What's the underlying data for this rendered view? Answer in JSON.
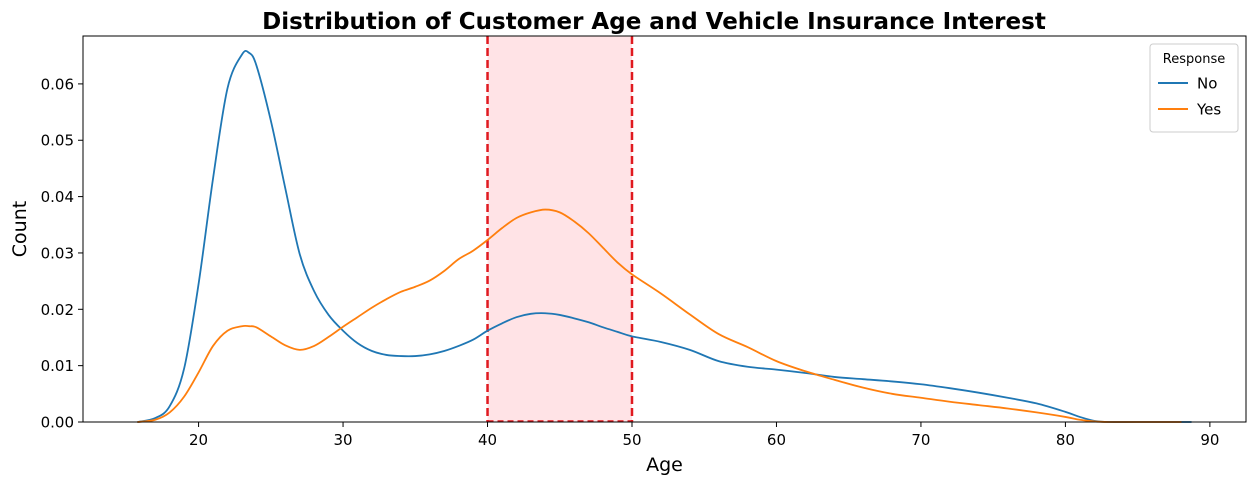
{
  "chart_data": {
    "type": "line",
    "title": "Distribution of Customer Age and Vehicle Insurance Interest",
    "xlabel": "Age",
    "ylabel": "Count",
    "xlim": [
      12,
      92.5
    ],
    "ylim": [
      0,
      0.0685
    ],
    "xticks": [
      20,
      30,
      40,
      50,
      60,
      70,
      80,
      90
    ],
    "yticks": [
      0.0,
      0.01,
      0.02,
      0.03,
      0.04,
      0.05,
      0.06
    ],
    "ytick_labels": [
      "0.00",
      "0.01",
      "0.02",
      "0.03",
      "0.04",
      "0.05",
      "0.06"
    ],
    "grid": false,
    "legend": {
      "title": "Response",
      "placement": "top-right"
    },
    "highlight_band": {
      "x_range": [
        40,
        50
      ],
      "fill_color": "#ffe3e6",
      "line_color": "#e0191f",
      "line_style": "dashed"
    },
    "series": [
      {
        "name": "No",
        "color": "#1f77b4",
        "x": [
          15.8,
          17,
          18,
          19,
          20,
          21,
          22,
          23,
          23.5,
          24,
          25,
          26,
          27,
          28,
          29,
          30,
          31,
          32,
          33,
          34,
          35,
          36,
          37,
          38,
          39,
          40,
          41,
          42,
          43,
          44,
          45,
          46,
          47,
          48,
          49,
          50,
          52,
          54,
          56,
          58,
          60,
          62,
          64,
          66,
          68,
          70,
          72,
          74,
          76,
          78,
          80,
          81,
          82,
          83,
          85,
          88.7
        ],
        "values": [
          0.0,
          0.0007,
          0.0028,
          0.0095,
          0.0245,
          0.0432,
          0.0592,
          0.0652,
          0.0655,
          0.0633,
          0.0535,
          0.0415,
          0.0298,
          0.0232,
          0.019,
          0.0162,
          0.014,
          0.0126,
          0.0119,
          0.0117,
          0.0117,
          0.012,
          0.0126,
          0.0135,
          0.0146,
          0.0162,
          0.0175,
          0.0186,
          0.0192,
          0.0193,
          0.019,
          0.0184,
          0.0177,
          0.0168,
          0.016,
          0.0152,
          0.0142,
          0.0128,
          0.0108,
          0.0098,
          0.0093,
          0.0087,
          0.008,
          0.0076,
          0.0072,
          0.0067,
          0.006,
          0.0052,
          0.0043,
          0.0033,
          0.0018,
          0.0009,
          0.0002,
          0.0,
          0.0,
          0.0
        ]
      },
      {
        "name": "Yes",
        "color": "#ff7f0e",
        "x": [
          15.8,
          17,
          18,
          19,
          20,
          21,
          22,
          23,
          23.5,
          24,
          25,
          26,
          27,
          28,
          29,
          30,
          31,
          32,
          33,
          34,
          35,
          36,
          37,
          38,
          39,
          40,
          41,
          42,
          43,
          44,
          45,
          46,
          47,
          48,
          49,
          50,
          52,
          54,
          56,
          58,
          60,
          62,
          64,
          66,
          68,
          70,
          72,
          74,
          76,
          78,
          80,
          81,
          82,
          83,
          85,
          88
        ],
        "values": [
          0.0,
          0.0004,
          0.0017,
          0.0045,
          0.0088,
          0.0135,
          0.0162,
          0.017,
          0.017,
          0.0168,
          0.0152,
          0.0136,
          0.0128,
          0.0135,
          0.0151,
          0.0169,
          0.0186,
          0.0203,
          0.0218,
          0.0231,
          0.024,
          0.0251,
          0.0268,
          0.0289,
          0.0304,
          0.0323,
          0.0344,
          0.0362,
          0.0372,
          0.0377,
          0.0372,
          0.0356,
          0.0335,
          0.0309,
          0.0283,
          0.0262,
          0.0228,
          0.0191,
          0.0156,
          0.0133,
          0.0108,
          0.009,
          0.0075,
          0.0061,
          0.005,
          0.0043,
          0.0036,
          0.003,
          0.0024,
          0.0017,
          0.0009,
          0.0004,
          0.0001,
          0.0,
          0.0,
          0.0
        ]
      }
    ]
  }
}
